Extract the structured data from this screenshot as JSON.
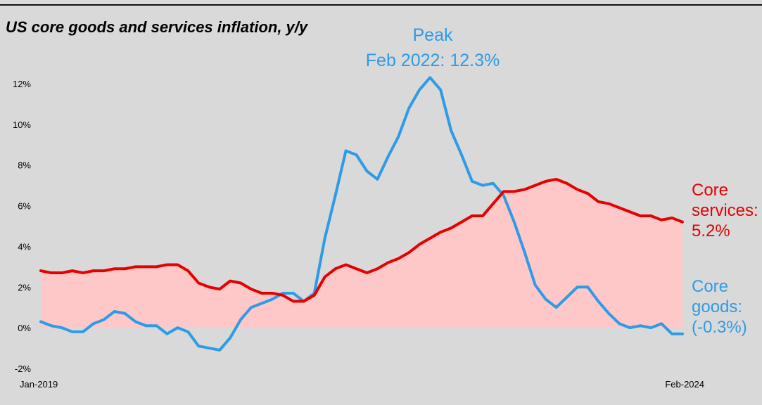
{
  "chart_data": {
    "type": "line",
    "title": "US core goods and services inflation, y/y",
    "xlabel": "",
    "ylabel": "",
    "x_tick_labels": [
      "Jan-2019",
      "Feb-2024"
    ],
    "ylim": [
      -2,
      12
    ],
    "y_ticks": [
      -2,
      0,
      2,
      4,
      6,
      8,
      10,
      12
    ],
    "y_tick_labels": [
      "-2%",
      "0%",
      "2%",
      "4%",
      "6%",
      "8%",
      "10%",
      "12%"
    ],
    "series": [
      {
        "name": "Core services",
        "color": "#e60000",
        "fill": "#ffc8c8",
        "values": [
          2.8,
          2.7,
          2.7,
          2.8,
          2.7,
          2.8,
          2.8,
          2.9,
          2.9,
          3.0,
          3.0,
          3.0,
          3.1,
          3.1,
          2.8,
          2.2,
          2.0,
          1.9,
          2.3,
          2.2,
          1.9,
          1.7,
          1.7,
          1.6,
          1.3,
          1.3,
          1.6,
          2.5,
          2.9,
          3.1,
          2.9,
          2.7,
          2.9,
          3.2,
          3.4,
          3.7,
          4.1,
          4.4,
          4.7,
          4.9,
          5.2,
          5.5,
          5.5,
          6.1,
          6.7,
          6.7,
          6.8,
          7.0,
          7.2,
          7.3,
          7.1,
          6.8,
          6.6,
          6.2,
          6.1,
          5.9,
          5.7,
          5.5,
          5.5,
          5.3,
          5.4,
          5.2
        ]
      },
      {
        "name": "Core goods",
        "color": "#2e9be6",
        "values": [
          0.3,
          0.1,
          0.0,
          -0.2,
          -0.2,
          0.2,
          0.4,
          0.8,
          0.7,
          0.3,
          0.1,
          0.1,
          -0.3,
          0.0,
          -0.2,
          -0.9,
          -1.0,
          -1.1,
          -0.5,
          0.4,
          1.0,
          1.2,
          1.4,
          1.7,
          1.7,
          1.3,
          1.7,
          4.4,
          6.5,
          8.7,
          8.5,
          7.7,
          7.3,
          8.4,
          9.4,
          10.8,
          11.7,
          12.3,
          11.7,
          9.7,
          8.5,
          7.2,
          7.0,
          7.1,
          6.5,
          5.2,
          3.7,
          2.1,
          1.4,
          1.0,
          1.5,
          2.0,
          2.0,
          1.3,
          0.7,
          0.2,
          0.0,
          0.1,
          0.0,
          0.2,
          -0.3,
          -0.3
        ]
      }
    ],
    "annotations": {
      "peak_title": "Peak",
      "peak_value": "Feb 2022: 12.3%",
      "services_lines": [
        "Core",
        "services:",
        "5.2%"
      ],
      "goods_lines": [
        "Core",
        "goods:",
        "(-0.3%)"
      ]
    }
  }
}
